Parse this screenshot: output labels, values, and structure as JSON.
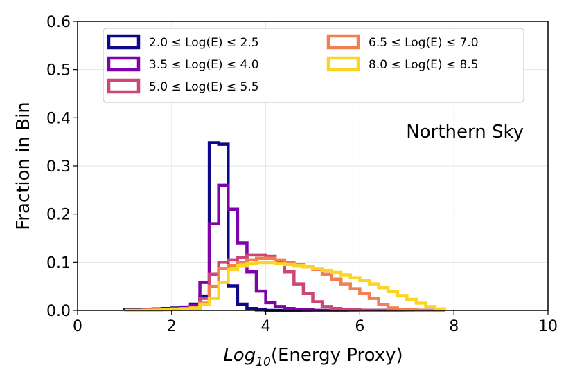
{
  "chart_data": {
    "type": "histogram",
    "title": "",
    "xlabel": "Log10(Energy Proxy)",
    "xlabel_parts": {
      "base": "Log",
      "sub": "10",
      "rest": "(Energy Proxy)"
    },
    "ylabel": "Fraction in Bin",
    "xlim": [
      0,
      10
    ],
    "ylim": [
      0,
      0.6
    ],
    "xticks": [
      "0",
      "2",
      "4",
      "6",
      "8",
      "10"
    ],
    "yticks": [
      "0.0",
      "0.1",
      "0.2",
      "0.3",
      "0.4",
      "0.5",
      "0.6"
    ],
    "grid": true,
    "legend_position": "top",
    "annotation": "Northern Sky",
    "bin_edges": [
      1.0,
      1.2,
      1.4,
      1.6,
      1.8,
      2.0,
      2.2,
      2.4,
      2.6,
      2.8,
      3.0,
      3.2,
      3.4,
      3.6,
      3.8,
      4.0,
      4.2,
      4.4,
      4.6,
      4.8,
      5.0,
      5.2,
      5.4,
      5.6,
      5.8,
      6.0,
      6.2,
      6.4,
      6.6,
      6.8,
      7.0,
      7.2,
      7.4,
      7.6,
      7.8
    ],
    "series": [
      {
        "name": "2.0 ≤ Log(E) ≤ 2.5",
        "color": "#0d0887",
        "values": [
          0.001,
          0.001,
          0.002,
          0.003,
          0.004,
          0.005,
          0.007,
          0.013,
          0.03,
          0.348,
          0.345,
          0.051,
          0.013,
          0.004,
          0.001,
          0,
          0,
          0,
          0,
          0,
          0,
          0,
          0,
          0,
          0,
          0,
          0,
          0,
          0,
          0,
          0,
          0,
          0,
          0
        ]
      },
      {
        "name": "3.5 ≤ Log(E) ≤ 4.0",
        "color": "#7e03a8",
        "values": [
          0,
          0,
          0.001,
          0.002,
          0.003,
          0.004,
          0.005,
          0.01,
          0.058,
          0.18,
          0.26,
          0.21,
          0.14,
          0.08,
          0.04,
          0.016,
          0.008,
          0.004,
          0.002,
          0.001,
          0,
          0,
          0,
          0,
          0,
          0,
          0,
          0,
          0,
          0,
          0,
          0,
          0,
          0
        ]
      },
      {
        "name": "5.0 ≤ Log(E) ≤ 5.5",
        "color": "#cc4778",
        "values": [
          0,
          0,
          0.001,
          0.001,
          0.002,
          0.003,
          0.004,
          0.005,
          0.025,
          0.075,
          0.1,
          0.105,
          0.11,
          0.115,
          0.115,
          0.112,
          0.1,
          0.08,
          0.055,
          0.035,
          0.018,
          0.008,
          0.004,
          0.002,
          0.001,
          0,
          0,
          0,
          0,
          0,
          0,
          0,
          0,
          0
        ]
      },
      {
        "name": "6.5 ≤ Log(E) ≤ 7.0",
        "color": "#f0804f",
        "values": [
          0,
          0,
          0,
          0.001,
          0.002,
          0.003,
          0.004,
          0.005,
          0.015,
          0.05,
          0.087,
          0.093,
          0.1,
          0.105,
          0.108,
          0.108,
          0.105,
          0.1,
          0.095,
          0.09,
          0.085,
          0.075,
          0.065,
          0.055,
          0.045,
          0.035,
          0.025,
          0.012,
          0.005,
          0.002,
          0.001,
          0,
          0,
          0
        ]
      },
      {
        "name": "8.0 ≤ Log(E) ≤ 8.5",
        "color": "#fbd524",
        "values": [
          0,
          0,
          0,
          0,
          0.001,
          0.002,
          0.003,
          0.005,
          0.013,
          0.025,
          0.058,
          0.085,
          0.093,
          0.097,
          0.099,
          0.099,
          0.097,
          0.095,
          0.093,
          0.09,
          0.087,
          0.083,
          0.079,
          0.074,
          0.068,
          0.062,
          0.055,
          0.047,
          0.039,
          0.031,
          0.023,
          0.015,
          0.008,
          0.003
        ]
      }
    ]
  }
}
